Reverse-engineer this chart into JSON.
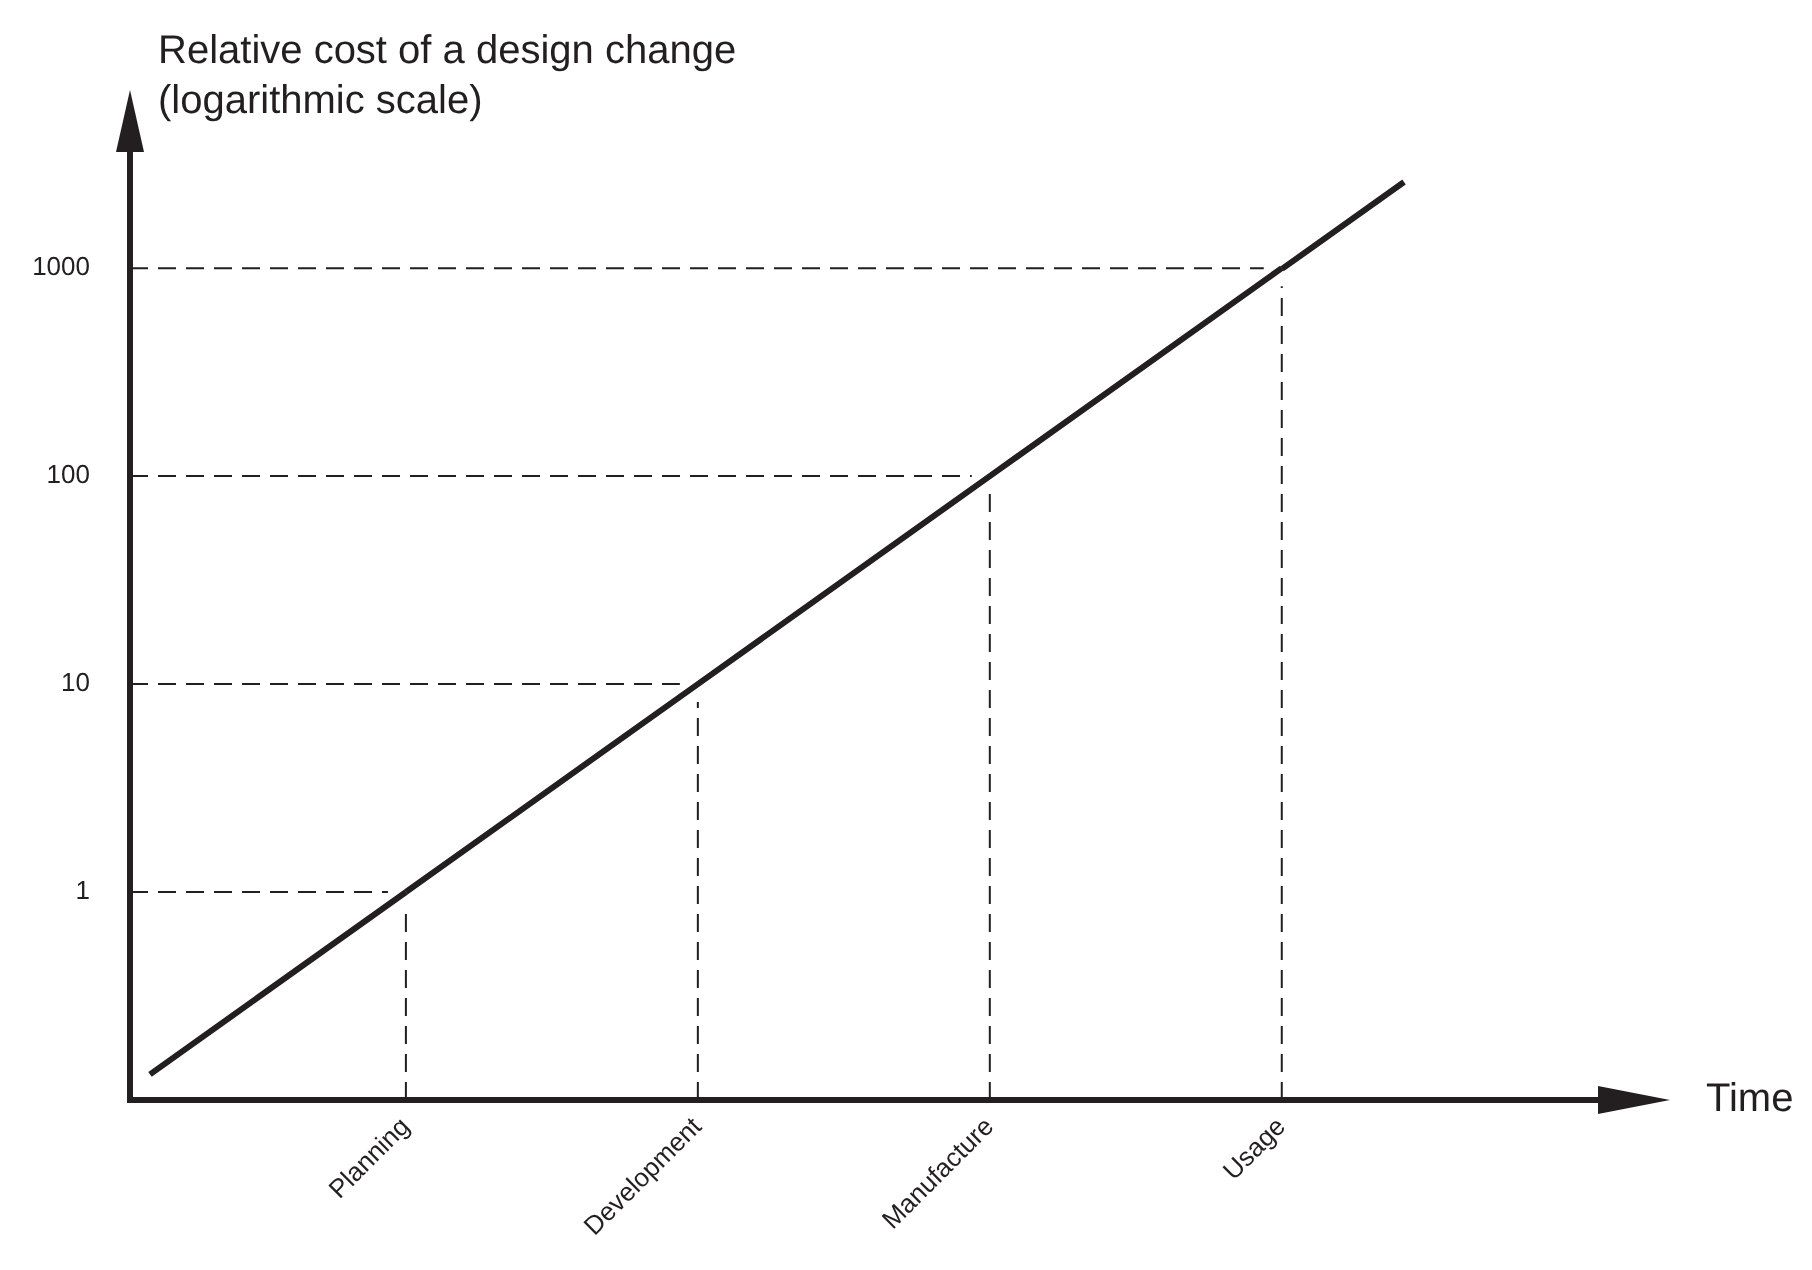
{
  "chart_data": {
    "type": "line",
    "ylabel": "Relative cost of a design change\n(logarithmic scale)",
    "categories": [
      "Planning",
      "Development",
      "Manufacture",
      "Usage"
    ],
    "series": [
      {
        "color": "#231f20",
        "values": [
          1,
          10,
          100,
          1000
        ]
      }
    ],
    "ylim": [
      0.1,
      3700
    ],
    "yticks": [
      1,
      10,
      100,
      1000
    ],
    "ref_lines": [
      {
        "axis": "y",
        "value": 1,
        "line_style": "dashed"
      },
      {
        "axis": "y",
        "value": 10,
        "line_style": "dashed"
      },
      {
        "axis": "y",
        "value": 100,
        "line_style": "dashed"
      },
      {
        "axis": "y",
        "value": 1000,
        "line_style": "dashed"
      },
      {
        "axis": "x",
        "value": "Planning",
        "line_style": "dashed"
      },
      {
        "axis": "x",
        "value": "Development",
        "line_style": "dashed"
      },
      {
        "axis": "x",
        "value": "Manufacture",
        "line_style": "dashed"
      },
      {
        "axis": "x",
        "value": "Usage",
        "line_style": "dashed"
      }
    ],
    "annotations": [
      "Time"
    ],
    "log": "y",
    "legend": false,
    "marker": "none",
    "line_style": "solid"
  }
}
